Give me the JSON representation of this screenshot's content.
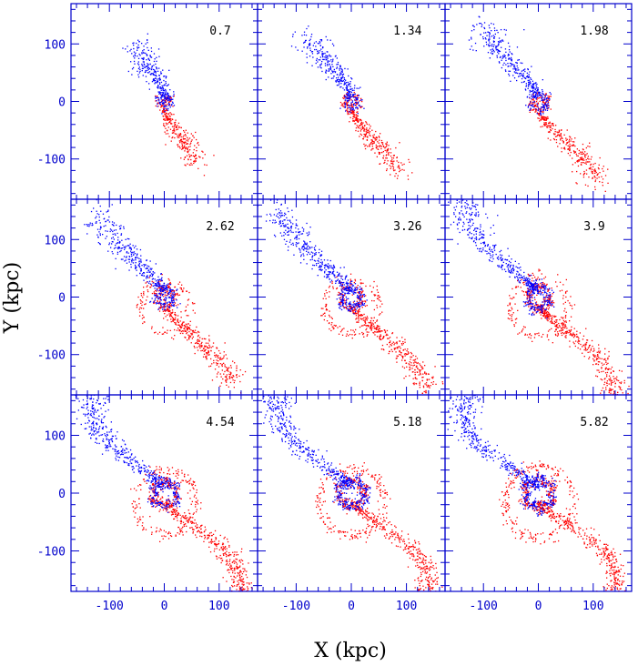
{
  "chart_data": {
    "type": "scatter",
    "layout": "3x3 panel grid, shared axes",
    "xlabel": "X (kpc)",
    "ylabel": "Y (kpc)",
    "xlim": [
      -170,
      170
    ],
    "ylim": [
      -170,
      170
    ],
    "x_ticks": [
      -100,
      0,
      100
    ],
    "y_ticks": [
      -100,
      0,
      100
    ],
    "colors": {
      "series_a": "#ff0000",
      "series_b": "#0000ff",
      "axes": "#0000cc"
    },
    "panels": [
      {
        "label": "0.7"
      },
      {
        "label": "1.34"
      },
      {
        "label": "1.98"
      },
      {
        "label": "2.62"
      },
      {
        "label": "3.26"
      },
      {
        "label": "3.9"
      },
      {
        "label": "4.54"
      },
      {
        "label": "5.18"
      },
      {
        "label": "5.82"
      }
    ]
  }
}
